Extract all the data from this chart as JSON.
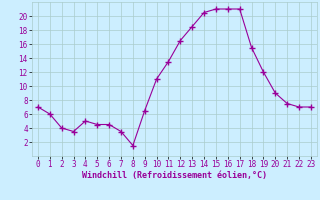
{
  "x": [
    0,
    1,
    2,
    3,
    4,
    5,
    6,
    7,
    8,
    9,
    10,
    11,
    12,
    13,
    14,
    15,
    16,
    17,
    18,
    19,
    20,
    21,
    22,
    23
  ],
  "y": [
    7,
    6,
    4,
    3.5,
    5,
    4.5,
    4.5,
    3.5,
    1.5,
    6.5,
    11,
    13.5,
    16.5,
    18.5,
    20.5,
    21,
    21,
    21,
    15.5,
    12,
    9,
    7.5,
    7,
    7
  ],
  "line_color": "#990099",
  "marker": "+",
  "marker_size": 4,
  "bg_color": "#cceeff",
  "grid_color": "#aacccc",
  "xlabel": "Windchill (Refroidissement éolien,°C)",
  "xlim": [
    -0.5,
    23.5
  ],
  "ylim": [
    0,
    22
  ],
  "yticks": [
    2,
    4,
    6,
    8,
    10,
    12,
    14,
    16,
    18,
    20
  ],
  "xticks": [
    0,
    1,
    2,
    3,
    4,
    5,
    6,
    7,
    8,
    9,
    10,
    11,
    12,
    13,
    14,
    15,
    16,
    17,
    18,
    19,
    20,
    21,
    22,
    23
  ],
  "tick_fontsize": 5.5,
  "xlabel_fontsize": 6,
  "lw": 0.8
}
